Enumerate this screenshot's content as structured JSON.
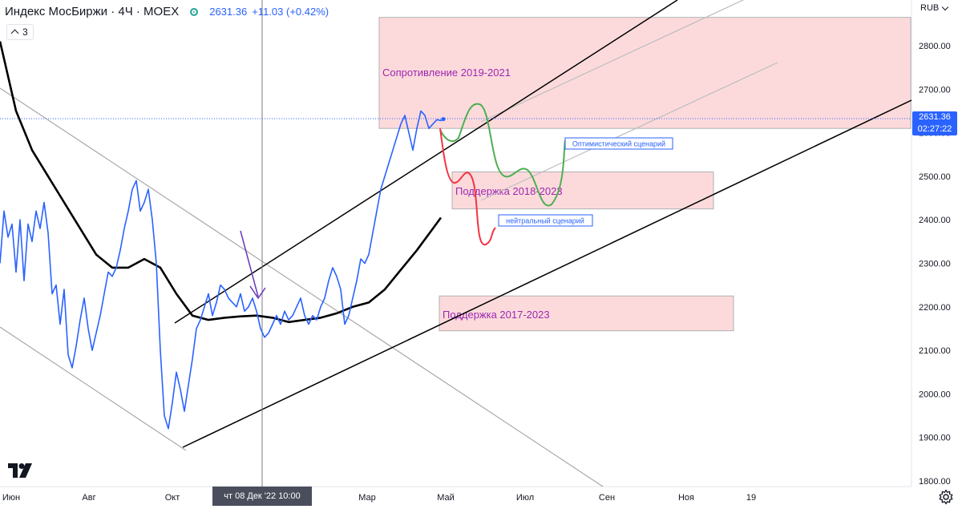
{
  "header": {
    "symbol": "Индекс МосБиржи · 4Ч · MOEX",
    "price": "2631.36",
    "change": "+11.03 (+0.42%)",
    "collapse_count": "3",
    "currency": "RUB"
  },
  "price_tag": {
    "price": "2631.36",
    "countdown": "02:27:22"
  },
  "crosshair_date": "чт 08 Дек '22  10:00",
  "colors": {
    "price_line": "#2962ff",
    "moving_average": "#000000",
    "zone_fill": "#fcd4d6",
    "zone_text": "#9c27b0",
    "scenario_up": "#4caf50",
    "scenario_down": "#f23645",
    "arrow": "#673ab7"
  },
  "chart_data": {
    "type": "line",
    "y_ticks": [
      1800,
      1900,
      2000,
      2100,
      2200,
      2300,
      2400,
      2500,
      2600,
      2700,
      2800
    ],
    "ylim": [
      1790,
      2900
    ],
    "x_ticks": [
      "Июн",
      "Авг",
      "Окт",
      "Мар",
      "Май",
      "Июл",
      "Сен",
      "Ноя",
      "19"
    ],
    "series": [
      {
        "x": [
          0,
          5,
          10,
          15,
          20,
          25,
          30,
          35,
          40,
          45,
          50,
          55,
          60,
          65,
          70,
          75,
          80,
          85,
          90,
          95,
          100,
          105,
          110,
          115,
          120,
          125,
          130,
          135,
          140,
          145,
          150,
          155,
          160,
          165,
          170,
          175,
          180,
          185,
          190,
          195,
          200,
          205,
          210,
          215,
          220,
          225,
          230,
          235,
          240,
          245,
          250,
          255,
          260,
          265,
          270,
          275,
          280,
          285,
          290,
          295,
          300,
          305,
          310,
          315,
          320,
          325,
          330,
          335,
          340,
          345,
          350,
          355,
          360,
          365,
          370,
          375,
          380,
          385,
          390,
          395,
          400,
          405,
          410,
          415,
          420,
          425,
          430,
          435,
          440,
          445,
          450,
          455,
          460,
          465,
          470,
          475,
          480,
          485,
          490,
          495,
          500,
          505,
          510,
          515,
          520,
          525,
          530,
          535,
          540,
          545,
          550,
          553
        ],
        "values": [
          2300,
          2420,
          2360,
          2390,
          2280,
          2400,
          2260,
          2390,
          2350,
          2420,
          2380,
          2440,
          2370,
          2230,
          2250,
          2160,
          2240,
          2090,
          2060,
          2110,
          2170,
          2220,
          2150,
          2100,
          2140,
          2180,
          2230,
          2280,
          2270,
          2290,
          2330,
          2380,
          2420,
          2470,
          2490,
          2420,
          2440,
          2470,
          2400,
          2300,
          2100,
          1950,
          1920,
          1980,
          2050,
          2010,
          1960,
          2020,
          2080,
          2150,
          2170,
          2200,
          2230,
          2180,
          2210,
          2250,
          2240,
          2220,
          2210,
          2200,
          2230,
          2190,
          2200,
          2220,
          2190,
          2150,
          2130,
          2140,
          2160,
          2180,
          2160,
          2190,
          2170,
          2180,
          2200,
          2220,
          2180,
          2160,
          2180,
          2170,
          2200,
          2220,
          2260,
          2290,
          2270,
          2240,
          2160,
          2180,
          2220,
          2260,
          2310,
          2300,
          2320,
          2370,
          2420,
          2470,
          2500,
          2530,
          2560,
          2590,
          2620,
          2640,
          2600,
          2560,
          2610,
          2650,
          2640,
          2610,
          2620,
          2630,
          2628,
          2631.36
        ]
      },
      {
        "x": [
          0,
          20,
          40,
          60,
          80,
          100,
          120,
          140,
          160,
          180,
          200,
          220,
          240,
          260,
          280,
          300,
          320,
          340,
          360,
          380,
          400,
          420,
          440,
          460,
          480,
          500,
          520,
          540,
          550
        ],
        "values": [
          2810,
          2650,
          2560,
          2500,
          2440,
          2380,
          2320,
          2290,
          2290,
          2310,
          2290,
          2230,
          2180,
          2170,
          2175,
          2178,
          2180,
          2175,
          2165,
          2170,
          2175,
          2185,
          2200,
          2210,
          2240,
          2285,
          2330,
          2380,
          2405
        ]
      }
    ],
    "zones": [
      {
        "label": "Сопротивление 2019-2021",
        "y_from": 2610,
        "y_to": 2865
      },
      {
        "label": "Поддержка 2018-2023",
        "y_from": 2425,
        "y_to": 2510
      },
      {
        "label": "Поддержка 2017-2023",
        "y_from": 2145,
        "y_to": 2225
      }
    ],
    "annotations": [
      "Оптимистический сценарий",
      "нейтральный сценарий"
    ]
  }
}
